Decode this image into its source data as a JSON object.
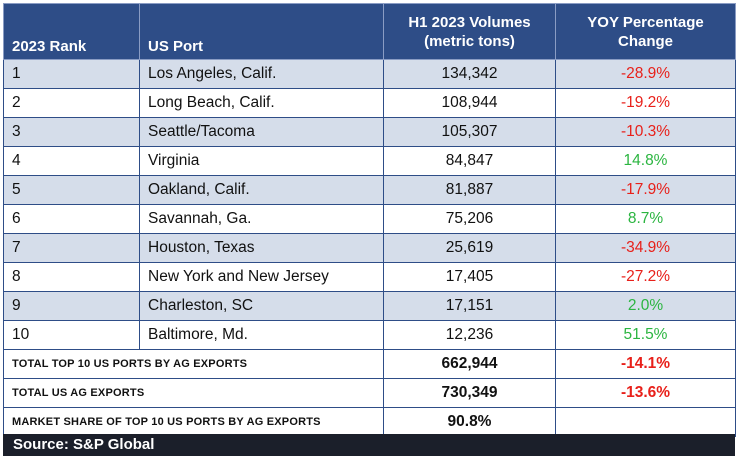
{
  "chart_data": {
    "type": "table",
    "columns": [
      "2023 Rank",
      "US Port",
      "H1 2023 Volumes (metric tons)",
      "YOY Percentage Change"
    ],
    "header": {
      "rank": "2023 Rank",
      "port": "US Port",
      "volume_line1": "H1 2023 Volumes",
      "volume_line2": "(metric tons)",
      "yoy_line1": "YOY Percentage",
      "yoy_line2": "Change"
    },
    "rows": [
      {
        "rank": "1",
        "port": "Los Angeles, Calif.",
        "volume": "134,342",
        "yoy": "-28.9%",
        "sign": "neg"
      },
      {
        "rank": "2",
        "port": "Long Beach, Calif.",
        "volume": "108,944",
        "yoy": "-19.2%",
        "sign": "neg"
      },
      {
        "rank": "3",
        "port": "Seattle/Tacoma",
        "volume": "105,307",
        "yoy": "-10.3%",
        "sign": "neg"
      },
      {
        "rank": "4",
        "port": "Virginia",
        "volume": "84,847",
        "yoy": "14.8%",
        "sign": "pos"
      },
      {
        "rank": "5",
        "port": "Oakland, Calif.",
        "volume": "81,887",
        "yoy": "-17.9%",
        "sign": "neg"
      },
      {
        "rank": "6",
        "port": "Savannah, Ga.",
        "volume": "75,206",
        "yoy": "8.7%",
        "sign": "pos"
      },
      {
        "rank": "7",
        "port": "Houston, Texas",
        "volume": "25,619",
        "yoy": "-34.9%",
        "sign": "neg"
      },
      {
        "rank": "8",
        "port": "New York and New Jersey",
        "volume": "17,405",
        "yoy": "-27.2%",
        "sign": "neg"
      },
      {
        "rank": "9",
        "port": "Charleston, SC",
        "volume": "17,151",
        "yoy": "2.0%",
        "sign": "pos"
      },
      {
        "rank": "10",
        "port": "Baltimore, Md.",
        "volume": "12,236",
        "yoy": "51.5%",
        "sign": "pos"
      }
    ],
    "totals": [
      {
        "label": "TOTAL TOP 10 US PORTS BY AG EXPORTS",
        "volume": "662,944",
        "yoy": "-14.1%",
        "sign": "neg"
      },
      {
        "label": "TOTAL US AG EXPORTS",
        "volume": "730,349",
        "yoy": "-13.6%",
        "sign": "neg"
      },
      {
        "label": "MARKET SHARE OF TOP 10 US PORTS BY AG EXPORTS",
        "volume": "90.8%",
        "yoy": "",
        "sign": ""
      }
    ],
    "source": "Source: S&P Global"
  },
  "colors": {
    "header_bg": "#2e4d87",
    "stripe_bg": "#d5ddea",
    "negative": "#e8201a",
    "positive": "#2bb540",
    "source_bar": "#1b1f2a"
  }
}
